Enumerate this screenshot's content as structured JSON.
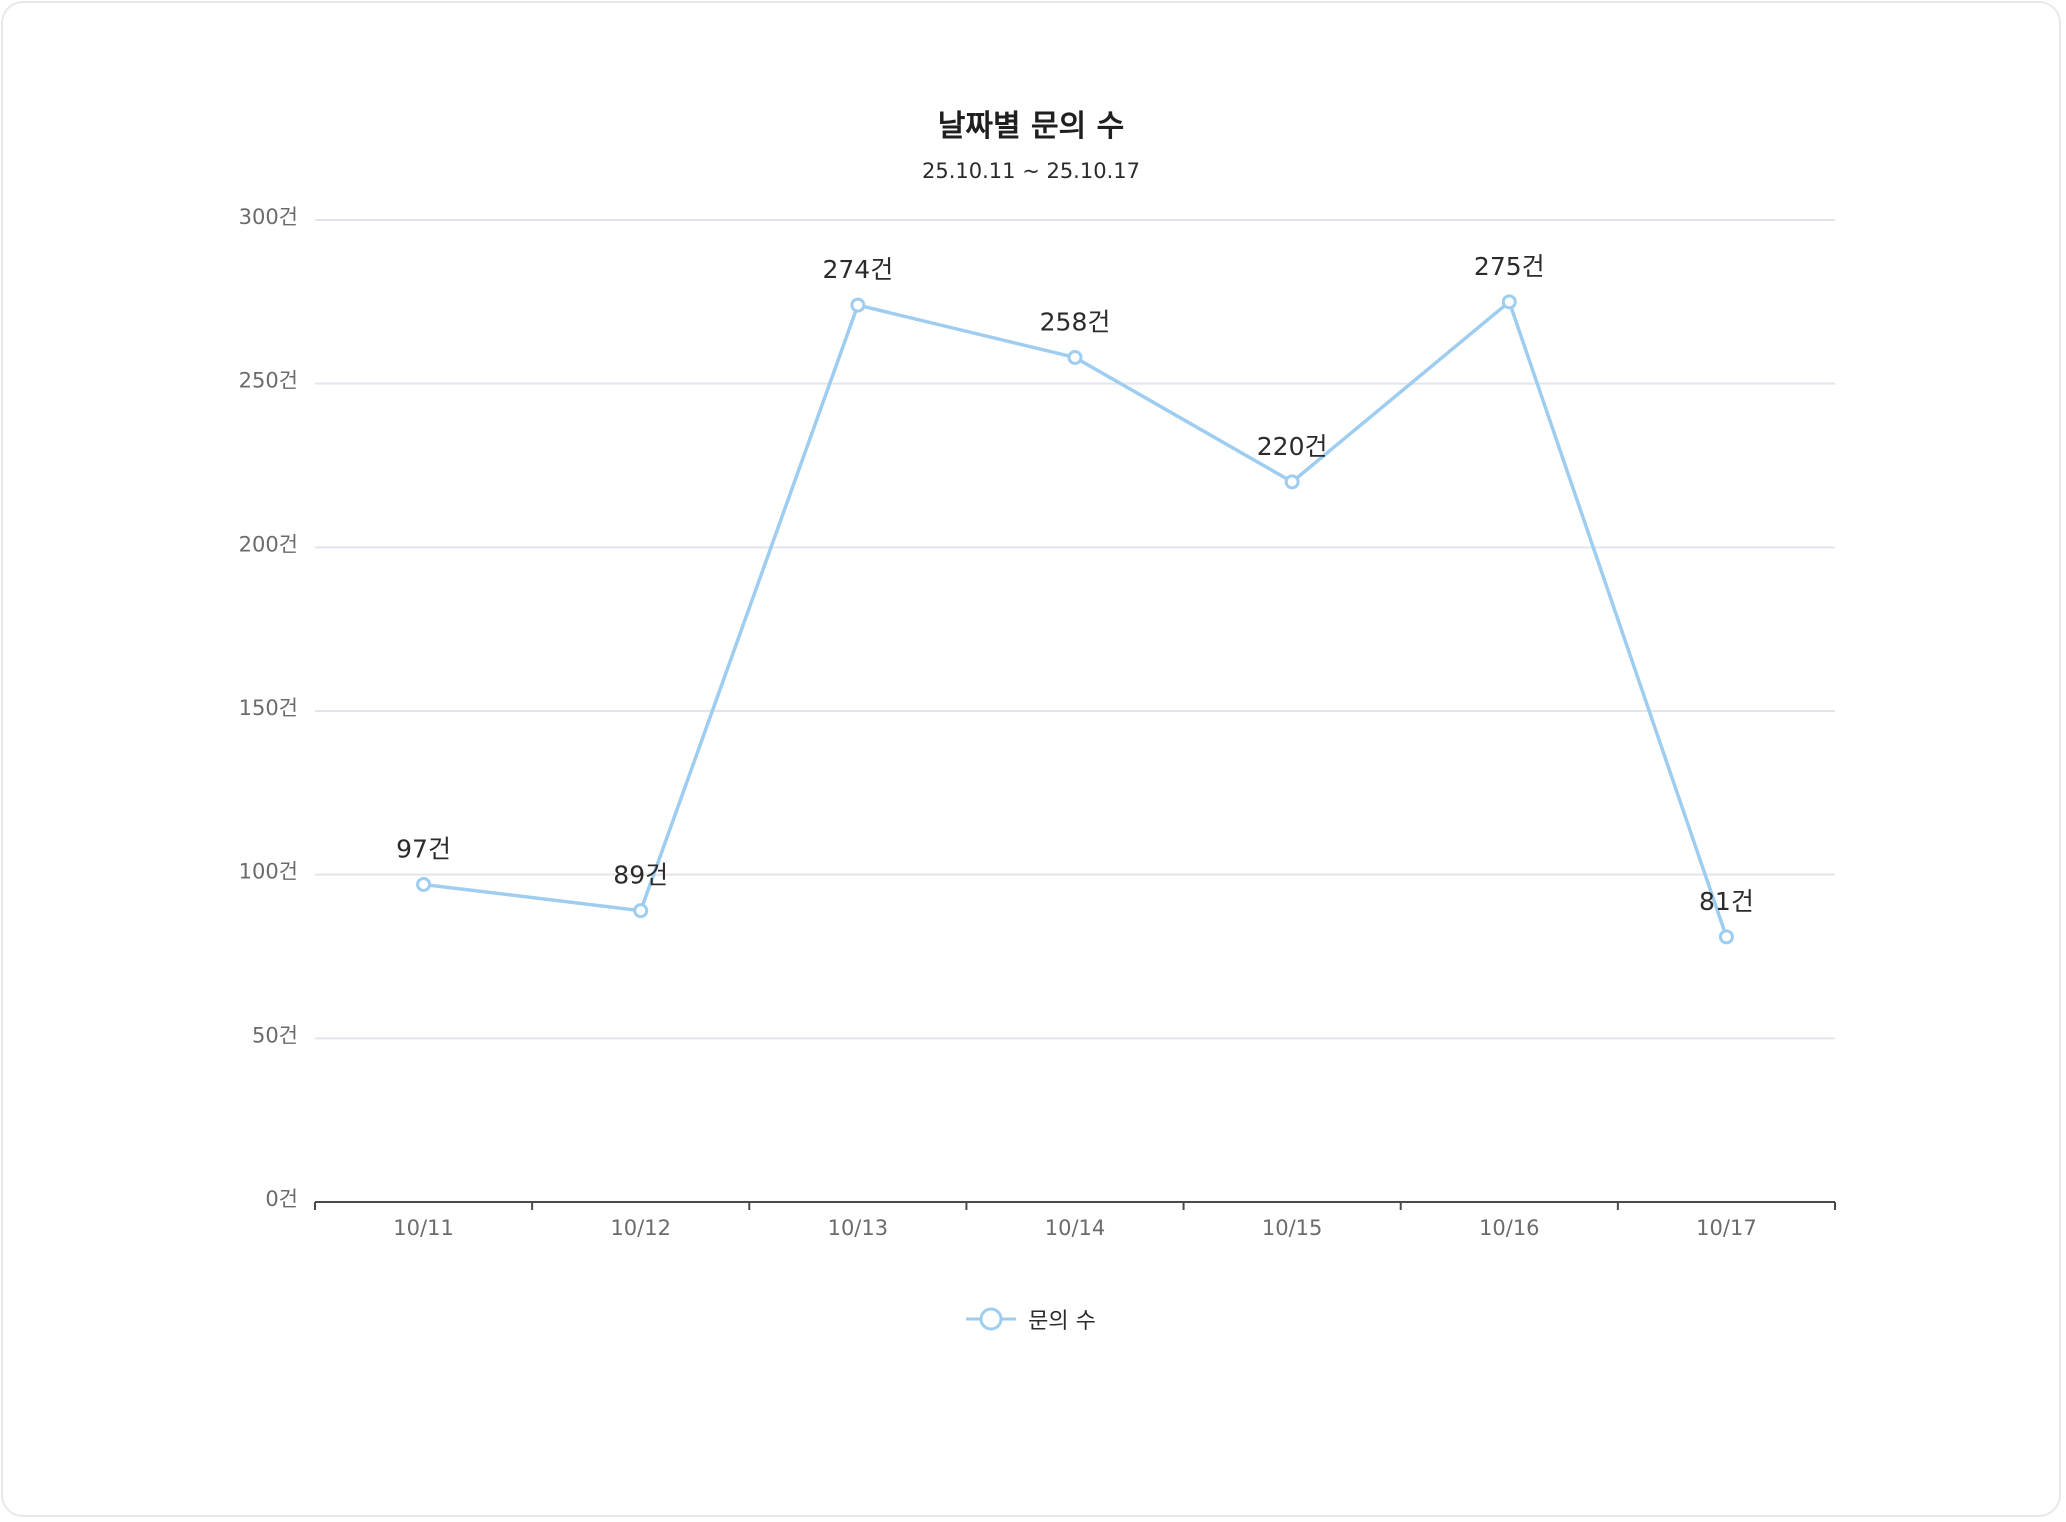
{
  "chart_data": {
    "type": "line",
    "title": "날짜별 문의 수",
    "subtitle": "25.10.11 ~ 25.10.17",
    "categories": [
      "10/11",
      "10/12",
      "10/13",
      "10/14",
      "10/15",
      "10/16",
      "10/17"
    ],
    "series": [
      {
        "name": "문의 수",
        "values": [
          97,
          89,
          274,
          258,
          220,
          275,
          81
        ],
        "color": "#9ecdf0"
      }
    ],
    "y_unit": "건",
    "ylim": [
      0,
      300
    ],
    "yticks": [
      0,
      50,
      100,
      150,
      200,
      250,
      300
    ],
    "grid": true,
    "legend_position": "bottom-center",
    "data_labels": true
  },
  "colors": {
    "line": "#9ecdf0",
    "grid": "#e3e5ec",
    "axis": "#4a4a4a",
    "tick_text": "#6b6b6b",
    "label_text": "#2b2b2b"
  }
}
